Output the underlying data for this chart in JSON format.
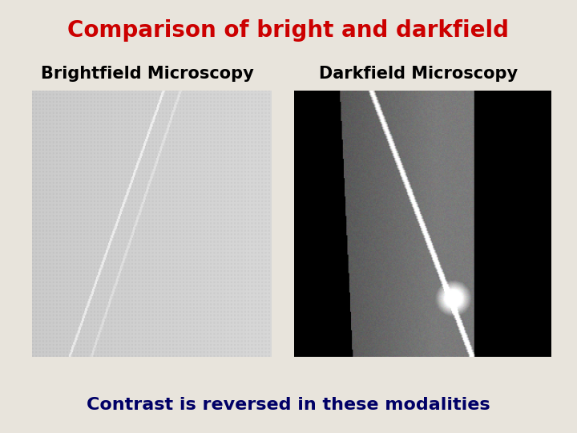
{
  "title": "Comparison of bright and darkfield",
  "title_color": "#cc0000",
  "title_fontsize": 20,
  "title_fontweight": "bold",
  "label_left": "Brightfield Microscopy",
  "label_right": "Darkfield Microscopy",
  "label_fontsize": 15,
  "label_fontweight": "bold",
  "label_color": "#000000",
  "caption": "Contrast is reversed in these modalities",
  "caption_color": "#000066",
  "caption_fontsize": 16,
  "caption_fontweight": "bold",
  "background_color": "#e8e4dc"
}
